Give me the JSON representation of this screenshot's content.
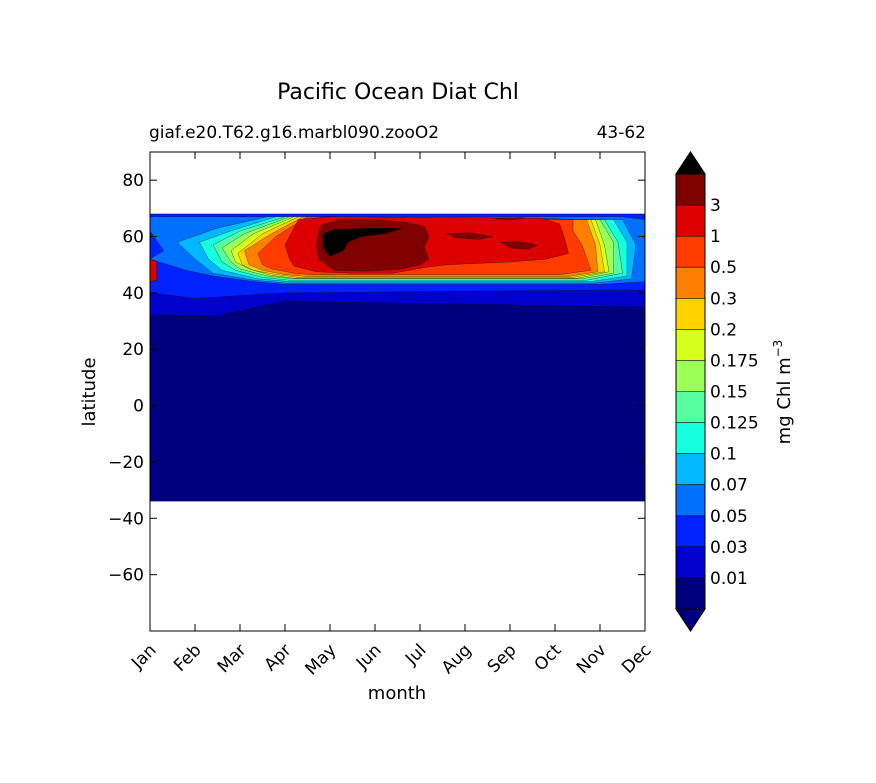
{
  "chart_data": {
    "type": "heatmap",
    "title": "Pacific Ocean Diat Chl",
    "subtitle_left": "giaf.e20.T62.g16.marbl090.zooO2",
    "subtitle_right": "43-62",
    "xlabel": "month",
    "ylabel": "latitude",
    "x_categories": [
      "Jan",
      "Feb",
      "Mar",
      "Apr",
      "May",
      "Jun",
      "Jul",
      "Aug",
      "Sep",
      "Oct",
      "Nov",
      "Dec"
    ],
    "xlim": [
      0,
      11
    ],
    "ylim": [
      -80,
      90
    ],
    "yticks": [
      -60,
      -40,
      -20,
      0,
      20,
      40,
      60,
      80
    ],
    "data_lat_range": [
      -34,
      67
    ],
    "colorbar": {
      "label": "mg Chl m",
      "label_superscript": "−3",
      "levels": [
        "0.01",
        "0.03",
        "0.05",
        "0.07",
        "0.1",
        "0.125",
        "0.15",
        "0.175",
        "0.2",
        "0.3",
        "0.5",
        "1",
        "3"
      ],
      "colors": [
        "#00007f",
        "#0000cd",
        "#0022ff",
        "#0070ff",
        "#00b8ff",
        "#16ffe1",
        "#56ff9f",
        "#9cff5a",
        "#d9ff1e",
        "#ffd200",
        "#ff8000",
        "#ff3b00",
        "#dd0000",
        "#800000"
      ],
      "extend": "both",
      "under_color": "#00007f",
      "over_color": "#000000"
    },
    "series": [
      {
        "level_index": 1,
        "regions": [
          [
            [
              0,
              32
            ],
            [
              1.5,
              32
            ],
            [
              3,
              37
            ],
            [
              11,
              35
            ],
            [
              11,
              68
            ],
            [
              0,
              68
            ]
          ]
        ]
      },
      {
        "level_index": 2,
        "regions": [
          [
            [
              0,
              40
            ],
            [
              1,
              38
            ],
            [
              2,
              39
            ],
            [
              3,
              40
            ],
            [
              10,
              41
            ],
            [
              11,
              41
            ],
            [
              11,
              68
            ],
            [
              0,
              68
            ]
          ]
        ]
      },
      {
        "level_index": 3,
        "regions": [
          [
            [
              0,
              52
            ],
            [
              0.8,
              48
            ],
            [
              1.4,
              46
            ],
            [
              2.3,
              44
            ],
            [
              3,
              43
            ],
            [
              10,
              43
            ],
            [
              11,
              44
            ],
            [
              11,
              66
            ],
            [
              10.5,
              67
            ],
            [
              0,
              67
            ],
            [
              0,
              62
            ],
            [
              0.3,
              55
            ]
          ]
        ]
      },
      {
        "level_index": 4,
        "regions": [
          [
            [
              0.6,
              58
            ],
            [
              1,
              52
            ],
            [
              1.4,
              47
            ],
            [
              2.3,
              44.5
            ],
            [
              3,
              43.5
            ],
            [
              9.9,
              43.5
            ],
            [
              10.7,
              45
            ],
            [
              10.8,
              57
            ],
            [
              10.5,
              66
            ],
            [
              2.6,
              67
            ],
            [
              1.5,
              63
            ]
          ]
        ]
      },
      {
        "level_index": 5,
        "regions": [
          [
            [
              1.1,
              58
            ],
            [
              1.3,
              52
            ],
            [
              1.6,
              48
            ],
            [
              2.4,
              45
            ],
            [
              3.1,
              44
            ],
            [
              9.8,
              44
            ],
            [
              10.6,
              46
            ],
            [
              10.6,
              58
            ],
            [
              10.3,
              66
            ],
            [
              2.8,
              67
            ],
            [
              1.8,
              62
            ]
          ]
        ]
      },
      {
        "level_index": 6,
        "regions": [
          [
            [
              1.4,
              57
            ],
            [
              1.6,
              51
            ],
            [
              1.9,
              48
            ],
            [
              2.5,
              45.5
            ],
            [
              3.1,
              44.5
            ],
            [
              9.7,
              44.5
            ],
            [
              10.5,
              47
            ],
            [
              10.4,
              58
            ],
            [
              10.1,
              66
            ],
            [
              3,
              67
            ],
            [
              2,
              62
            ]
          ]
        ]
      },
      {
        "level_index": 7,
        "regions": [
          [
            [
              1.6,
              56
            ],
            [
              1.8,
              51
            ],
            [
              2,
              48.5
            ],
            [
              2.6,
              46
            ],
            [
              3.2,
              45
            ],
            [
              9.6,
              45
            ],
            [
              10.3,
              47
            ],
            [
              10.3,
              58
            ],
            [
              10,
              66
            ],
            [
              3.1,
              67
            ],
            [
              2.1,
              61
            ]
          ]
        ]
      },
      {
        "level_index": 8,
        "regions": [
          [
            [
              1.8,
              55
            ],
            [
              1.9,
              51
            ],
            [
              2.2,
              48.5
            ],
            [
              2.7,
              46.2
            ],
            [
              3.2,
              45.2
            ],
            [
              9.5,
              45.2
            ],
            [
              10.2,
              47.5
            ],
            [
              10.1,
              57
            ],
            [
              9.9,
              66
            ],
            [
              3.2,
              67
            ],
            [
              2.3,
              61
            ]
          ]
        ]
      },
      {
        "level_index": 9,
        "regions": [
          [
            [
              1.95,
              54
            ],
            [
              2.05,
              50
            ],
            [
              2.3,
              48
            ],
            [
              2.8,
              46.5
            ],
            [
              3.3,
              45.5
            ],
            [
              9.4,
              45.5
            ],
            [
              10.1,
              47.5
            ],
            [
              10,
              57
            ],
            [
              9.8,
              66
            ],
            [
              3.3,
              67
            ],
            [
              2.5,
              61
            ]
          ]
        ]
      },
      {
        "level_index": 10,
        "regions": [
          [
            [
              2.1,
              55
            ],
            [
              2.2,
              50
            ],
            [
              2.5,
              48
            ],
            [
              3,
              46.5
            ],
            [
              3.5,
              45.8
            ],
            [
              9.3,
              45.8
            ],
            [
              9.95,
              47.5
            ],
            [
              9.9,
              57
            ],
            [
              9.7,
              66
            ],
            [
              3.4,
              67
            ],
            [
              2.7,
              61
            ]
          ]
        ]
      },
      {
        "level_index": 11,
        "regions": [
          [
            [
              2.4,
              54
            ],
            [
              2.5,
              50
            ],
            [
              2.7,
              48.5
            ],
            [
              3.2,
              47
            ],
            [
              3.6,
              46.5
            ],
            [
              9.1,
              46.5
            ],
            [
              9.8,
              48
            ],
            [
              9.6,
              57
            ],
            [
              9.4,
              62
            ],
            [
              9.4,
              66
            ],
            [
              3.5,
              67
            ],
            [
              2.8,
              60
            ]
          ]
        ]
      },
      {
        "level_index": 12,
        "regions": [
          [
            [
              3,
              57
            ],
            [
              3.1,
              52
            ],
            [
              3.2,
              49.5
            ],
            [
              3.7,
              47.5
            ],
            [
              4.5,
              47
            ],
            [
              5.4,
              47
            ],
            [
              6.1,
              49
            ],
            [
              6.6,
              50
            ],
            [
              8,
              51
            ],
            [
              8.8,
              52
            ],
            [
              9.3,
              54
            ],
            [
              9.2,
              60
            ],
            [
              9.1,
              64.5
            ],
            [
              8.7,
              66.5
            ],
            [
              4,
              67
            ],
            [
              3.3,
              66
            ],
            [
              3.1,
              60
            ]
          ],
          [
            [
              0,
              52
            ],
            [
              0,
              44
            ],
            [
              0.15,
              44.5
            ],
            [
              0.15,
              51
            ]
          ]
        ]
      },
      {
        "level_index": 13,
        "regions": [
          [
            [
              3.75,
              62
            ],
            [
              3.7,
              56
            ],
            [
              3.75,
              52
            ],
            [
              4.1,
              48
            ],
            [
              4.8,
              47.7
            ],
            [
              5.6,
              48.5
            ],
            [
              6,
              50
            ],
            [
              6.2,
              52
            ],
            [
              6.1,
              56
            ],
            [
              6.2,
              60
            ],
            [
              6.1,
              63.5
            ],
            [
              5.7,
              65
            ],
            [
              5,
              66
            ],
            [
              4.2,
              66
            ],
            [
              3.8,
              64
            ]
          ],
          [
            [
              6.6,
              61
            ],
            [
              6.8,
              59.5
            ],
            [
              7.3,
              59
            ],
            [
              7.6,
              60
            ],
            [
              7.1,
              61.3
            ]
          ],
          [
            [
              7.8,
              58
            ],
            [
              8,
              56
            ],
            [
              8.4,
              55.5
            ],
            [
              8.6,
              57
            ],
            [
              8.2,
              58.2
            ]
          ],
          [
            [
              7.6,
              66.5
            ],
            [
              7.8,
              66
            ],
            [
              8.1,
              66
            ],
            [
              8.3,
              66.7
            ]
          ]
        ]
      },
      {
        "level_index": 14,
        "regions": [
          [
            [
              3.85,
              61
            ],
            [
              4.1,
              62.5
            ],
            [
              5,
              63
            ],
            [
              5.6,
              62.8
            ],
            [
              5.2,
              61
            ],
            [
              4.7,
              60
            ],
            [
              4.4,
              58
            ],
            [
              4.3,
              55
            ],
            [
              4,
              53
            ],
            [
              3.85,
              56
            ]
          ]
        ]
      }
    ]
  }
}
